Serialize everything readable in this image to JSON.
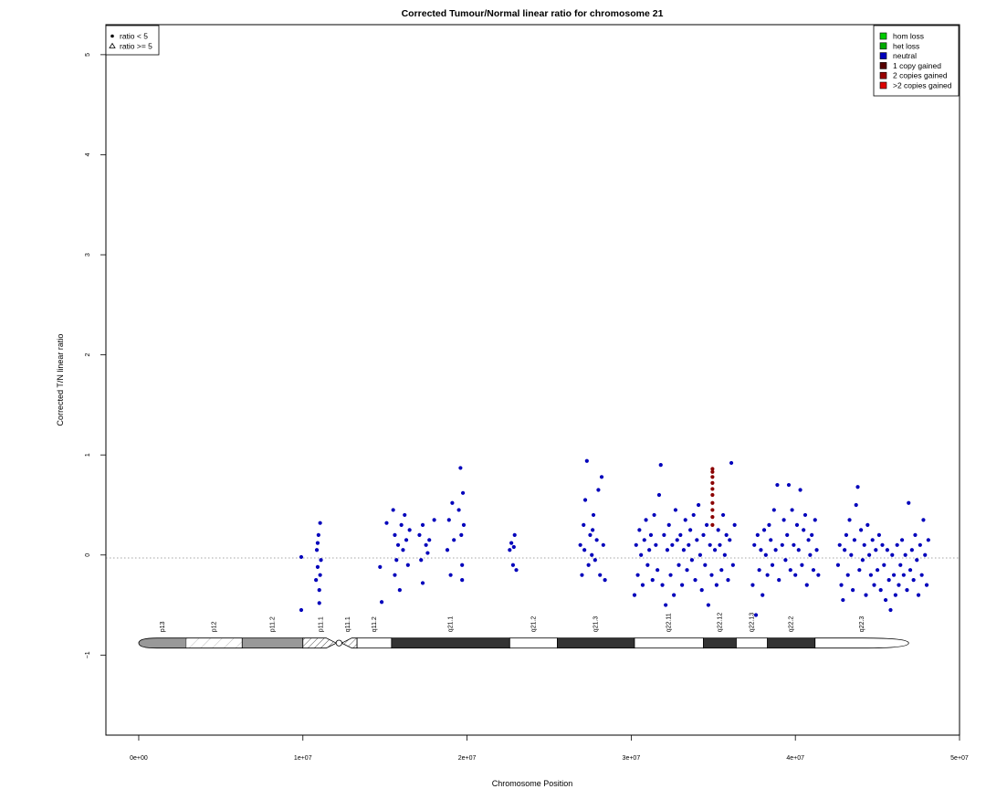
{
  "chart_data": {
    "type": "scatter",
    "title": "Corrected Tumour/Normal linear ratio for chromosome  21",
    "xlabel": "Chromosome Position",
    "ylabel": "Corrected T/N linear ratio",
    "xlim": [
      -2000000,
      50000000
    ],
    "ylim": [
      -1.8,
      5.3
    ],
    "x_ticks": [
      {
        "value": 0,
        "label": "0e+00"
      },
      {
        "value": 10000000,
        "label": "1e+07"
      },
      {
        "value": 20000000,
        "label": "2e+07"
      },
      {
        "value": 30000000,
        "label": "3e+07"
      },
      {
        "value": 40000000,
        "label": "4e+07"
      },
      {
        "value": 50000000,
        "label": "5e+07"
      }
    ],
    "y_ticks": [
      {
        "value": -1,
        "label": "−1"
      },
      {
        "value": 0,
        "label": "0"
      },
      {
        "value": 1,
        "label": "1"
      },
      {
        "value": 2,
        "label": "2"
      },
      {
        "value": 3,
        "label": "3"
      },
      {
        "value": 4,
        "label": "4"
      },
      {
        "value": 5,
        "label": "5"
      }
    ],
    "reference_line": {
      "y": 0,
      "style": "dotted",
      "color": "#888888"
    },
    "shape_legend": {
      "position": "top-left",
      "entries": [
        {
          "symbol": "circle",
          "label": "ratio < 5"
        },
        {
          "symbol": "triangle",
          "label": "ratio >= 5"
        }
      ]
    },
    "color_legend": {
      "position": "top-right",
      "entries": [
        {
          "label": "hom loss",
          "color": "#00cc00"
        },
        {
          "label": "het loss",
          "color": "#00aa00"
        },
        {
          "label": "neutral",
          "color": "#0000bb"
        },
        {
          "label": "1 copy gained",
          "color": "#550000"
        },
        {
          "label": "2 copies gained",
          "color": "#990000"
        },
        {
          "label": ">2 copies gained",
          "color": "#dd0000"
        }
      ]
    },
    "series": [
      {
        "name": "neutral",
        "color": "#0000bb",
        "points": [
          [
            9900000,
            -0.02
          ],
          [
            9900000,
            -0.55
          ],
          [
            10800000,
            -0.25
          ],
          [
            10850000,
            0.05
          ],
          [
            10900000,
            -0.12
          ],
          [
            10950000,
            0.2
          ],
          [
            11000000,
            -0.35
          ],
          [
            11050000,
            0.32
          ],
          [
            11100000,
            -0.05
          ],
          [
            11000000,
            -0.48
          ],
          [
            10900000,
            0.12
          ],
          [
            11050000,
            -0.2
          ],
          [
            14700000,
            -0.12
          ],
          [
            14800000,
            -0.47
          ],
          [
            15100000,
            0.32
          ],
          [
            15500000,
            0.45
          ],
          [
            15600000,
            0.2
          ],
          [
            15700000,
            -0.05
          ],
          [
            15800000,
            0.1
          ],
          [
            15900000,
            -0.35
          ],
          [
            16000000,
            0.3
          ],
          [
            16200000,
            0.4
          ],
          [
            16300000,
            0.15
          ],
          [
            16400000,
            -0.1
          ],
          [
            16500000,
            0.25
          ],
          [
            15600000,
            -0.2
          ],
          [
            16100000,
            0.05
          ],
          [
            17100000,
            0.2
          ],
          [
            17200000,
            -0.05
          ],
          [
            17300000,
            0.3
          ],
          [
            17500000,
            0.1
          ],
          [
            17700000,
            0.15
          ],
          [
            18000000,
            0.35
          ],
          [
            17300000,
            -0.28
          ],
          [
            17600000,
            0.02
          ],
          [
            18800000,
            0.05
          ],
          [
            18900000,
            0.35
          ],
          [
            19000000,
            -0.2
          ],
          [
            19100000,
            0.52
          ],
          [
            19200000,
            0.15
          ],
          [
            19500000,
            0.45
          ],
          [
            19600000,
            0.87
          ],
          [
            19650000,
            0.2
          ],
          [
            19700000,
            -0.1
          ],
          [
            19750000,
            0.62
          ],
          [
            19800000,
            0.3
          ],
          [
            19700000,
            -0.25
          ],
          [
            22600000,
            0.05
          ],
          [
            22700000,
            0.12
          ],
          [
            22800000,
            -0.1
          ],
          [
            22900000,
            0.2
          ],
          [
            23000000,
            -0.15
          ],
          [
            22850000,
            0.08
          ],
          [
            26900000,
            0.1
          ],
          [
            27000000,
            -0.2
          ],
          [
            27100000,
            0.3
          ],
          [
            27200000,
            0.55
          ],
          [
            27300000,
            0.94
          ],
          [
            27400000,
            -0.1
          ],
          [
            27500000,
            0.2
          ],
          [
            27600000,
            0.0
          ],
          [
            27700000,
            0.4
          ],
          [
            27800000,
            -0.05
          ],
          [
            27900000,
            0.15
          ],
          [
            28000000,
            0.65
          ],
          [
            28100000,
            -0.2
          ],
          [
            28200000,
            0.78
          ],
          [
            28300000,
            0.1
          ],
          [
            28400000,
            -0.25
          ],
          [
            27150000,
            0.05
          ],
          [
            27650000,
            0.25
          ],
          [
            30200000,
            -0.4
          ],
          [
            30300000,
            0.1
          ],
          [
            30400000,
            -0.2
          ],
          [
            30500000,
            0.25
          ],
          [
            30600000,
            0.0
          ],
          [
            30700000,
            -0.3
          ],
          [
            30800000,
            0.15
          ],
          [
            30900000,
            0.35
          ],
          [
            31000000,
            -0.1
          ],
          [
            31100000,
            0.05
          ],
          [
            31200000,
            0.2
          ],
          [
            31300000,
            -0.25
          ],
          [
            31400000,
            0.4
          ],
          [
            31500000,
            0.1
          ],
          [
            31600000,
            -0.15
          ],
          [
            31700000,
            0.6
          ],
          [
            31800000,
            0.9
          ],
          [
            31900000,
            -0.3
          ],
          [
            32000000,
            0.2
          ],
          [
            32100000,
            -0.5
          ],
          [
            32200000,
            0.05
          ],
          [
            32300000,
            0.3
          ],
          [
            32400000,
            -0.2
          ],
          [
            32500000,
            0.1
          ],
          [
            32600000,
            -0.4
          ],
          [
            32700000,
            0.45
          ],
          [
            32800000,
            0.15
          ],
          [
            32900000,
            -0.1
          ],
          [
            33000000,
            0.2
          ],
          [
            33100000,
            -0.3
          ],
          [
            33200000,
            0.05
          ],
          [
            33300000,
            0.35
          ],
          [
            33400000,
            -0.15
          ],
          [
            33500000,
            0.1
          ],
          [
            33600000,
            0.25
          ],
          [
            33700000,
            -0.05
          ],
          [
            33800000,
            0.4
          ],
          [
            33900000,
            -0.25
          ],
          [
            34000000,
            0.15
          ],
          [
            34100000,
            0.5
          ],
          [
            34200000,
            0.0
          ],
          [
            34300000,
            -0.35
          ],
          [
            34400000,
            0.2
          ],
          [
            34500000,
            -0.1
          ],
          [
            34600000,
            0.3
          ],
          [
            34700000,
            -0.5
          ],
          [
            34800000,
            0.1
          ],
          [
            34900000,
            -0.2
          ],
          [
            35100000,
            0.05
          ],
          [
            35200000,
            -0.3
          ],
          [
            35300000,
            0.25
          ],
          [
            35400000,
            0.1
          ],
          [
            35500000,
            -0.15
          ],
          [
            35600000,
            0.4
          ],
          [
            35700000,
            0.0
          ],
          [
            35800000,
            0.2
          ],
          [
            35900000,
            -0.25
          ],
          [
            36000000,
            0.15
          ],
          [
            36100000,
            0.92
          ],
          [
            36200000,
            -0.1
          ],
          [
            36300000,
            0.3
          ],
          [
            37400000,
            -0.3
          ],
          [
            37500000,
            0.1
          ],
          [
            37600000,
            -0.6
          ],
          [
            37700000,
            0.2
          ],
          [
            37800000,
            -0.15
          ],
          [
            37900000,
            0.05
          ],
          [
            38000000,
            -0.4
          ],
          [
            38100000,
            0.25
          ],
          [
            38200000,
            0.0
          ],
          [
            38300000,
            -0.2
          ],
          [
            38400000,
            0.3
          ],
          [
            38500000,
            0.15
          ],
          [
            38600000,
            -0.1
          ],
          [
            38700000,
            0.45
          ],
          [
            38800000,
            0.05
          ],
          [
            38900000,
            0.7
          ],
          [
            39000000,
            -0.25
          ],
          [
            39200000,
            0.1
          ],
          [
            39300000,
            0.35
          ],
          [
            39400000,
            -0.05
          ],
          [
            39500000,
            0.2
          ],
          [
            39600000,
            0.7
          ],
          [
            39700000,
            -0.15
          ],
          [
            39800000,
            0.45
          ],
          [
            39900000,
            0.1
          ],
          [
            40000000,
            -0.2
          ],
          [
            40100000,
            0.3
          ],
          [
            40200000,
            0.05
          ],
          [
            40300000,
            0.65
          ],
          [
            40400000,
            -0.1
          ],
          [
            40500000,
            0.25
          ],
          [
            40600000,
            0.4
          ],
          [
            40700000,
            -0.3
          ],
          [
            40800000,
            0.15
          ],
          [
            40900000,
            0.0
          ],
          [
            41000000,
            0.2
          ],
          [
            41100000,
            -0.15
          ],
          [
            41200000,
            0.35
          ],
          [
            41300000,
            0.05
          ],
          [
            41400000,
            -0.2
          ],
          [
            42600000,
            -0.1
          ],
          [
            42700000,
            0.1
          ],
          [
            42800000,
            -0.3
          ],
          [
            42900000,
            -0.45
          ],
          [
            43000000,
            0.05
          ],
          [
            43100000,
            0.2
          ],
          [
            43200000,
            -0.2
          ],
          [
            43300000,
            0.35
          ],
          [
            43400000,
            0.0
          ],
          [
            43500000,
            -0.35
          ],
          [
            43600000,
            0.15
          ],
          [
            43700000,
            0.5
          ],
          [
            43800000,
            0.68
          ],
          [
            43900000,
            -0.15
          ],
          [
            44000000,
            0.25
          ],
          [
            44100000,
            -0.05
          ],
          [
            44200000,
            0.1
          ],
          [
            44300000,
            -0.4
          ],
          [
            44400000,
            0.3
          ],
          [
            44500000,
            0.0
          ],
          [
            44600000,
            -0.2
          ],
          [
            44700000,
            0.15
          ],
          [
            44800000,
            -0.3
          ],
          [
            44900000,
            0.05
          ],
          [
            45000000,
            -0.15
          ],
          [
            45100000,
            0.2
          ],
          [
            45200000,
            -0.35
          ],
          [
            45300000,
            0.1
          ],
          [
            45400000,
            -0.1
          ],
          [
            45500000,
            -0.45
          ],
          [
            45600000,
            0.05
          ],
          [
            45700000,
            -0.25
          ],
          [
            45800000,
            -0.55
          ],
          [
            45900000,
            0.0
          ],
          [
            46000000,
            -0.2
          ],
          [
            46100000,
            -0.4
          ],
          [
            46200000,
            0.1
          ],
          [
            46300000,
            -0.3
          ],
          [
            46400000,
            -0.1
          ],
          [
            46500000,
            0.15
          ],
          [
            46600000,
            -0.2
          ],
          [
            46700000,
            0.0
          ],
          [
            46800000,
            -0.35
          ],
          [
            46900000,
            0.52
          ],
          [
            47000000,
            -0.15
          ],
          [
            47100000,
            0.05
          ],
          [
            47200000,
            -0.25
          ],
          [
            47300000,
            0.2
          ],
          [
            47400000,
            -0.05
          ],
          [
            47500000,
            -0.4
          ],
          [
            47600000,
            0.1
          ],
          [
            47700000,
            -0.2
          ],
          [
            47800000,
            0.35
          ],
          [
            47900000,
            0.0
          ],
          [
            48000000,
            -0.3
          ],
          [
            48100000,
            0.15
          ]
        ]
      },
      {
        "name": "1 copy gained",
        "color": "#8b0000",
        "points": [
          [
            34950000,
            0.3
          ],
          [
            34950000,
            0.38
          ],
          [
            34950000,
            0.45
          ],
          [
            34950000,
            0.52
          ],
          [
            34950000,
            0.6
          ],
          [
            34950000,
            0.66
          ],
          [
            34950000,
            0.72
          ],
          [
            34950000,
            0.78
          ],
          [
            34950000,
            0.83
          ],
          [
            34950000,
            0.86
          ]
        ]
      }
    ],
    "ideogram": {
      "y": -0.88,
      "bands": [
        {
          "name": "p13",
          "start": 0,
          "end": 2900000,
          "fill": "#999999",
          "shape": "cap-left"
        },
        {
          "name": "p12",
          "start": 2900000,
          "end": 6300000,
          "fill": "hatch-light"
        },
        {
          "name": "p11.2",
          "start": 6300000,
          "end": 10000000,
          "fill": "#999999"
        },
        {
          "name": "p11.1",
          "start": 10000000,
          "end": 12200000,
          "fill": "hatch"
        },
        {
          "name": "q11.1",
          "start": 12200000,
          "end": 13300000,
          "fill": "hatch"
        },
        {
          "name": "q11.2",
          "start": 13300000,
          "end": 15400000,
          "fill": "#ffffff"
        },
        {
          "name": "q21.1",
          "start": 15400000,
          "end": 22600000,
          "fill": "#333333"
        },
        {
          "name": "q21.2",
          "start": 22600000,
          "end": 25500000,
          "fill": "#ffffff"
        },
        {
          "name": "q21.3",
          "start": 25500000,
          "end": 30200000,
          "fill": "#333333"
        },
        {
          "name": "q22.11",
          "start": 30200000,
          "end": 34400000,
          "fill": "#ffffff"
        },
        {
          "name": "q22.12",
          "start": 34400000,
          "end": 36400000,
          "fill": "#333333"
        },
        {
          "name": "q22.13",
          "start": 36400000,
          "end": 38300000,
          "fill": "#ffffff"
        },
        {
          "name": "q22.2",
          "start": 38300000,
          "end": 41200000,
          "fill": "#333333"
        },
        {
          "name": "q22.3",
          "start": 41200000,
          "end": 46900000,
          "fill": "#ffffff",
          "shape": "cap-right"
        }
      ]
    }
  }
}
